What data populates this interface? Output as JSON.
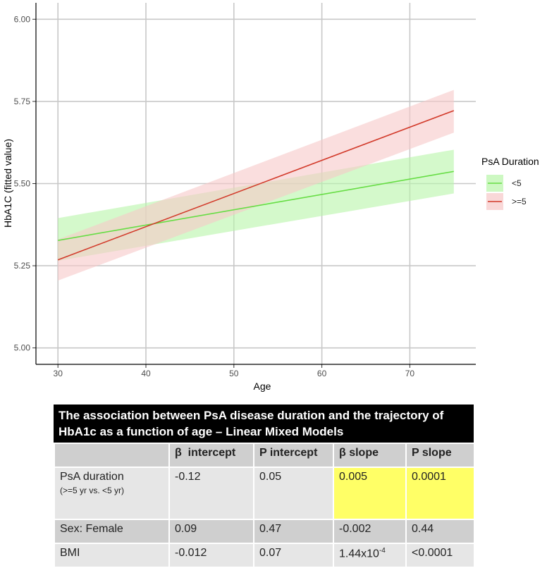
{
  "chart_data": {
    "type": "line",
    "title": "",
    "xlabel": "Age",
    "ylabel": "HbA1C (fitted value)",
    "xlim": [
      27.5,
      77.5
    ],
    "ylim": [
      4.95,
      6.05
    ],
    "x_ticks": [
      "30",
      "40",
      "50",
      "60",
      "70"
    ],
    "y_ticks": [
      "5.00",
      "5.25",
      "5.50",
      "5.75",
      "6.00"
    ],
    "grid": true,
    "legend_position": "right",
    "legend_title": "PsA Duration",
    "series": [
      {
        "name": "<5",
        "color": "#66dd44",
        "band_color": "#b8f5a8",
        "x": [
          30,
          75
        ],
        "y": [
          5.327,
          5.537
        ],
        "lower": [
          5.265,
          5.47
        ],
        "upper": [
          5.395,
          5.603
        ]
      },
      {
        "name": ">=5",
        "color": "#d23a2a",
        "band_color": "#f7c8c8",
        "x": [
          30,
          75
        ],
        "y": [
          5.268,
          5.722
        ],
        "lower": [
          5.205,
          5.655
        ],
        "upper": [
          5.33,
          5.785
        ]
      }
    ]
  },
  "table": {
    "title": "The association between PsA disease duration and the trajectory of HbA1c as a function of age – Linear Mixed Models",
    "headers": [
      "",
      "β  intercept",
      "P intercept",
      "β slope",
      "P slope"
    ],
    "rows": [
      {
        "label": "PsA duration",
        "sublabel": "(>=5 yr vs. <5 yr)",
        "b_int": "-0.12",
        "p_int": "0.05",
        "b_slope": "0.005",
        "p_slope": "0.0001"
      },
      {
        "label": "Sex: Female",
        "b_int": "0.09",
        "p_int": "0.47",
        "b_slope": "-0.002",
        "p_slope": "0.44"
      },
      {
        "label": "BMI",
        "b_int": "-0.012",
        "p_int": "0.07",
        "b_slope_base": "1.44x10",
        "b_slope_exp": "-4",
        "p_slope": "<0.0001"
      }
    ],
    "highlight_color": "#ffff66"
  }
}
